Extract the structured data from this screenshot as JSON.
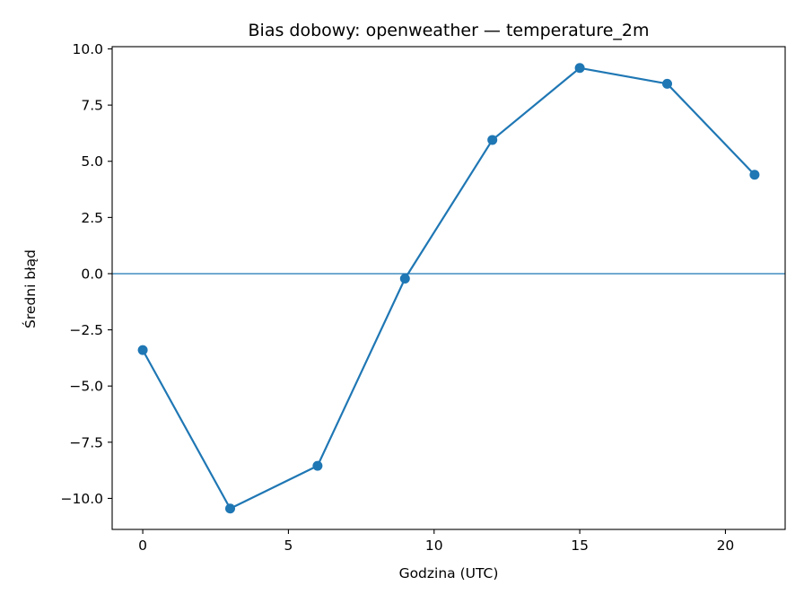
{
  "chart_data": {
    "type": "line",
    "title": "Bias dobowy: openweather — temperature_2m",
    "xlabel": "Godzina (UTC)",
    "ylabel": "Średni błąd",
    "xlim": [
      -1.05,
      22.05
    ],
    "ylim": [
      -11.38,
      10.1
    ],
    "x_ticks": [
      0,
      5,
      10,
      15,
      20
    ],
    "x_tick_labels": [
      "0",
      "5",
      "10",
      "15",
      "20"
    ],
    "y_ticks": [
      -10,
      -7.5,
      -5,
      -2.5,
      0,
      2.5,
      5,
      7.5,
      10
    ],
    "y_tick_labels": [
      "−10.0",
      "−7.5",
      "−5.0",
      "−2.5",
      "0.0",
      "2.5",
      "5.0",
      "7.5",
      "10.0"
    ],
    "reference_line": 0,
    "grid": false,
    "series": [
      {
        "x": [
          0,
          3,
          6,
          9,
          12,
          15,
          18,
          21
        ],
        "values": [
          -3.4,
          -10.45,
          -8.55,
          -0.22,
          5.95,
          9.15,
          8.45,
          4.4
        ],
        "color": "#1f77b4",
        "marker": "circle"
      }
    ]
  }
}
